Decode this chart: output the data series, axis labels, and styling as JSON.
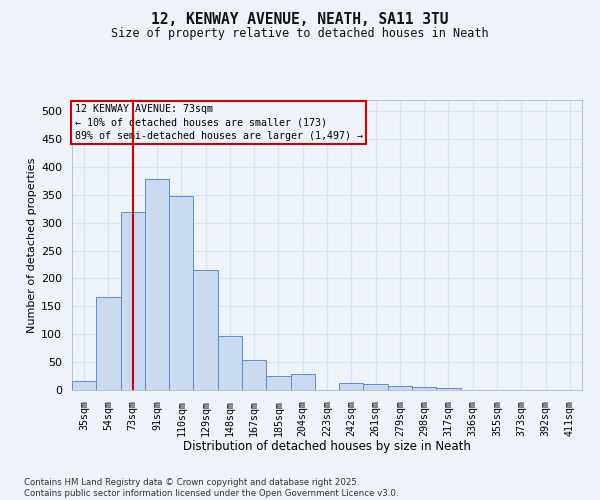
{
  "title_line1": "12, KENWAY AVENUE, NEATH, SA11 3TU",
  "title_line2": "Size of property relative to detached houses in Neath",
  "xlabel": "Distribution of detached houses by size in Neath",
  "ylabel": "Number of detached properties",
  "categories": [
    "35sqm",
    "54sqm",
    "73sqm",
    "91sqm",
    "110sqm",
    "129sqm",
    "148sqm",
    "167sqm",
    "185sqm",
    "204sqm",
    "223sqm",
    "242sqm",
    "261sqm",
    "279sqm",
    "298sqm",
    "317sqm",
    "336sqm",
    "355sqm",
    "373sqm",
    "392sqm",
    "411sqm"
  ],
  "values": [
    17,
    167,
    320,
    378,
    348,
    215,
    96,
    53,
    25,
    28,
    0,
    13,
    10,
    8,
    5,
    3,
    0,
    0,
    0,
    0,
    0
  ],
  "bar_color": "#c9d9f0",
  "bar_edge_color": "#5b8dc9",
  "annotation_line_idx": 2,
  "annotation_line_color": "#cc0000",
  "annotation_text_line1": "12 KENWAY AVENUE: 73sqm",
  "annotation_text_line2": "← 10% of detached houses are smaller (173)",
  "annotation_text_line3": "89% of semi-detached houses are larger (1,497) →",
  "annotation_box_color": "#cc0000",
  "background_color": "#eef2f9",
  "grid_color": "#d8e2f0",
  "ylim": [
    0,
    520
  ],
  "yticks": [
    0,
    50,
    100,
    150,
    200,
    250,
    300,
    350,
    400,
    450,
    500
  ],
  "footnote_line1": "Contains HM Land Registry data © Crown copyright and database right 2025.",
  "footnote_line2": "Contains public sector information licensed under the Open Government Licence v3.0."
}
